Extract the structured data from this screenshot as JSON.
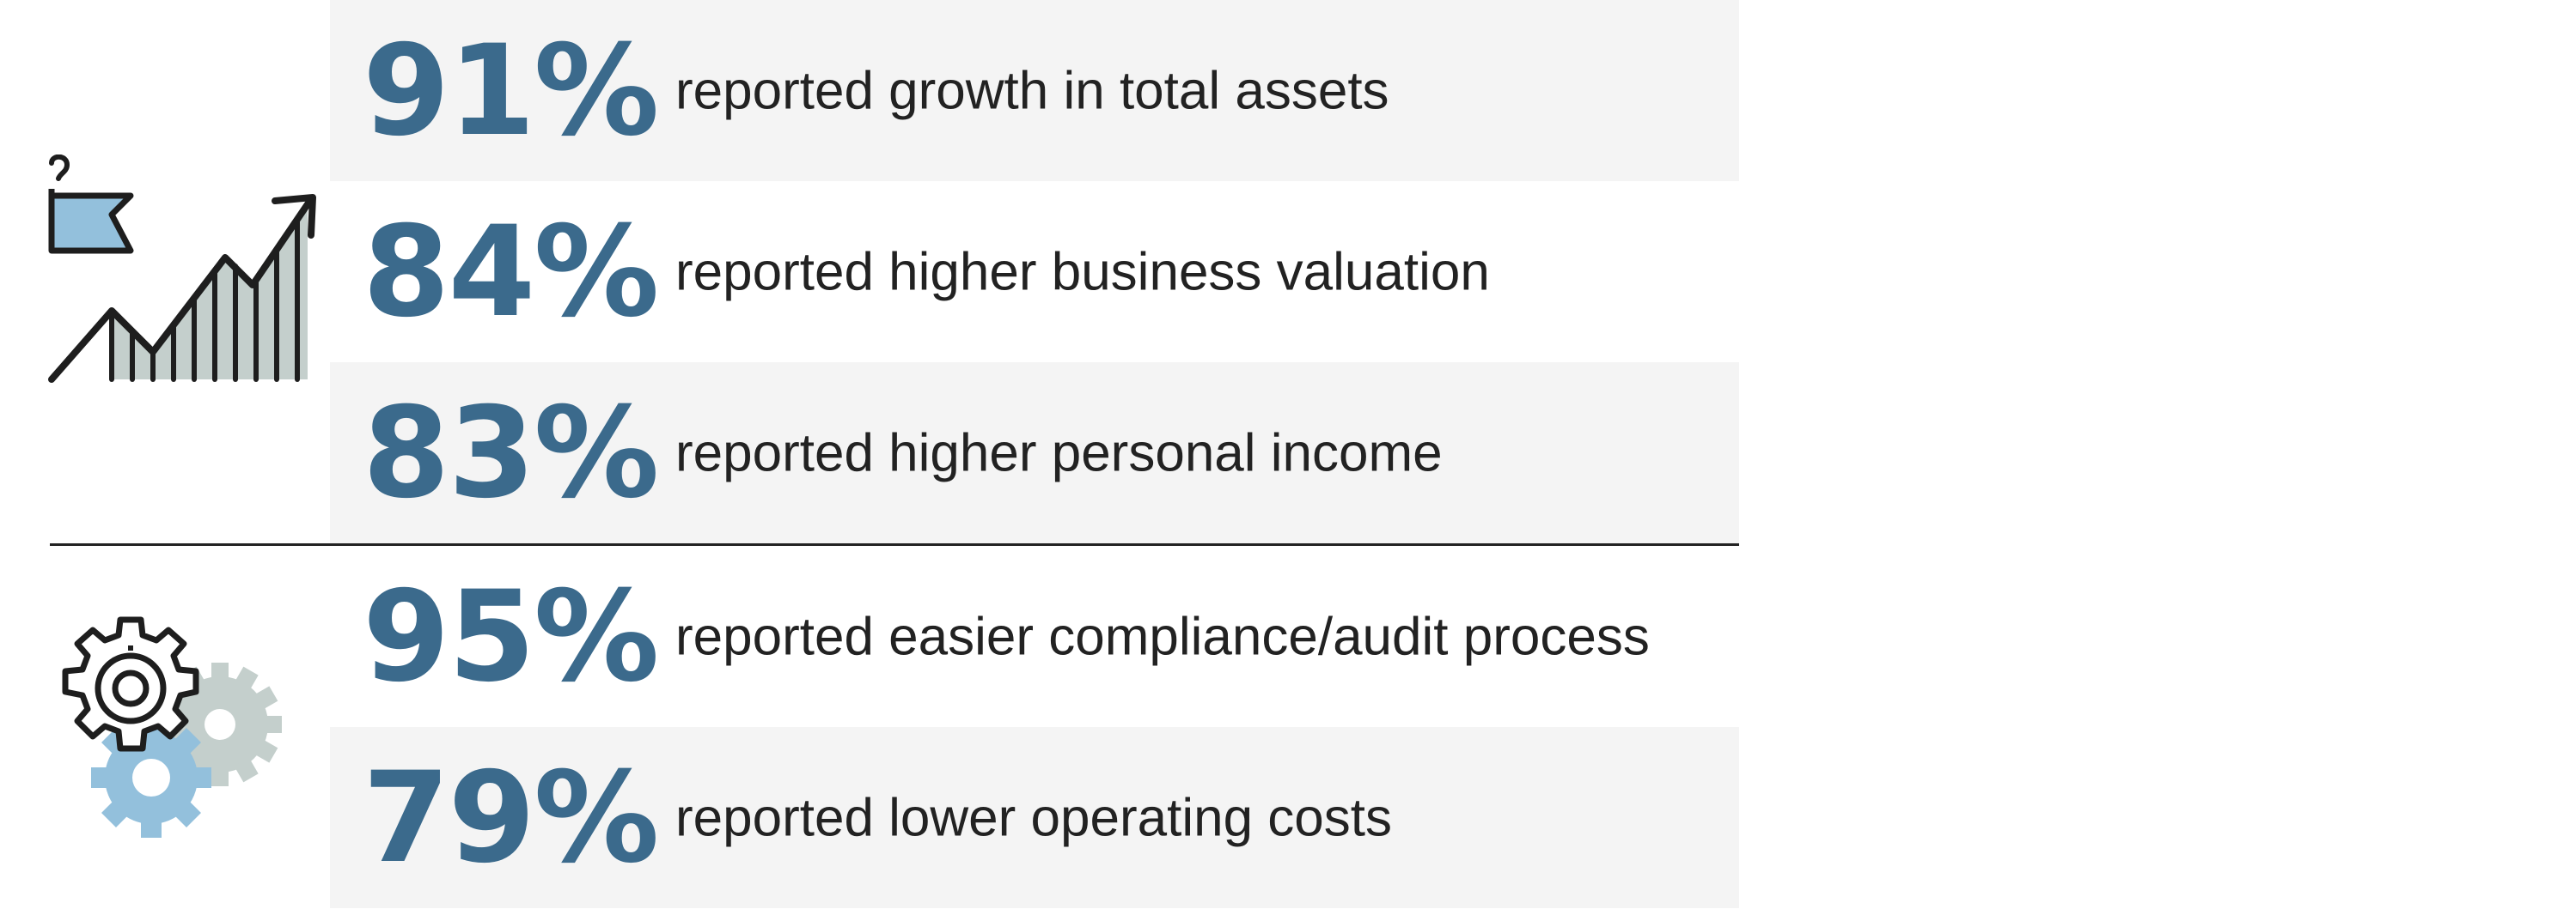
{
  "stats": [
    {
      "value": "91%",
      "label": "reported growth in total assets"
    },
    {
      "value": "84%",
      "label": "reported higher business valuation"
    },
    {
      "value": "83%",
      "label": "reported higher personal income"
    },
    {
      "value": "95%",
      "label": "reported easier compliance/audit process"
    },
    {
      "value": "79%",
      "label": "reported lower operating costs"
    }
  ],
  "icons": {
    "group1": "growth-chart-flag-icon",
    "group2": "gears-icon"
  },
  "colors": {
    "accent": "#3b6a8c",
    "text": "#222222",
    "shade": "#f4f4f4",
    "icon_blue": "#93c0dc",
    "icon_grey": "#c4cfcc"
  }
}
